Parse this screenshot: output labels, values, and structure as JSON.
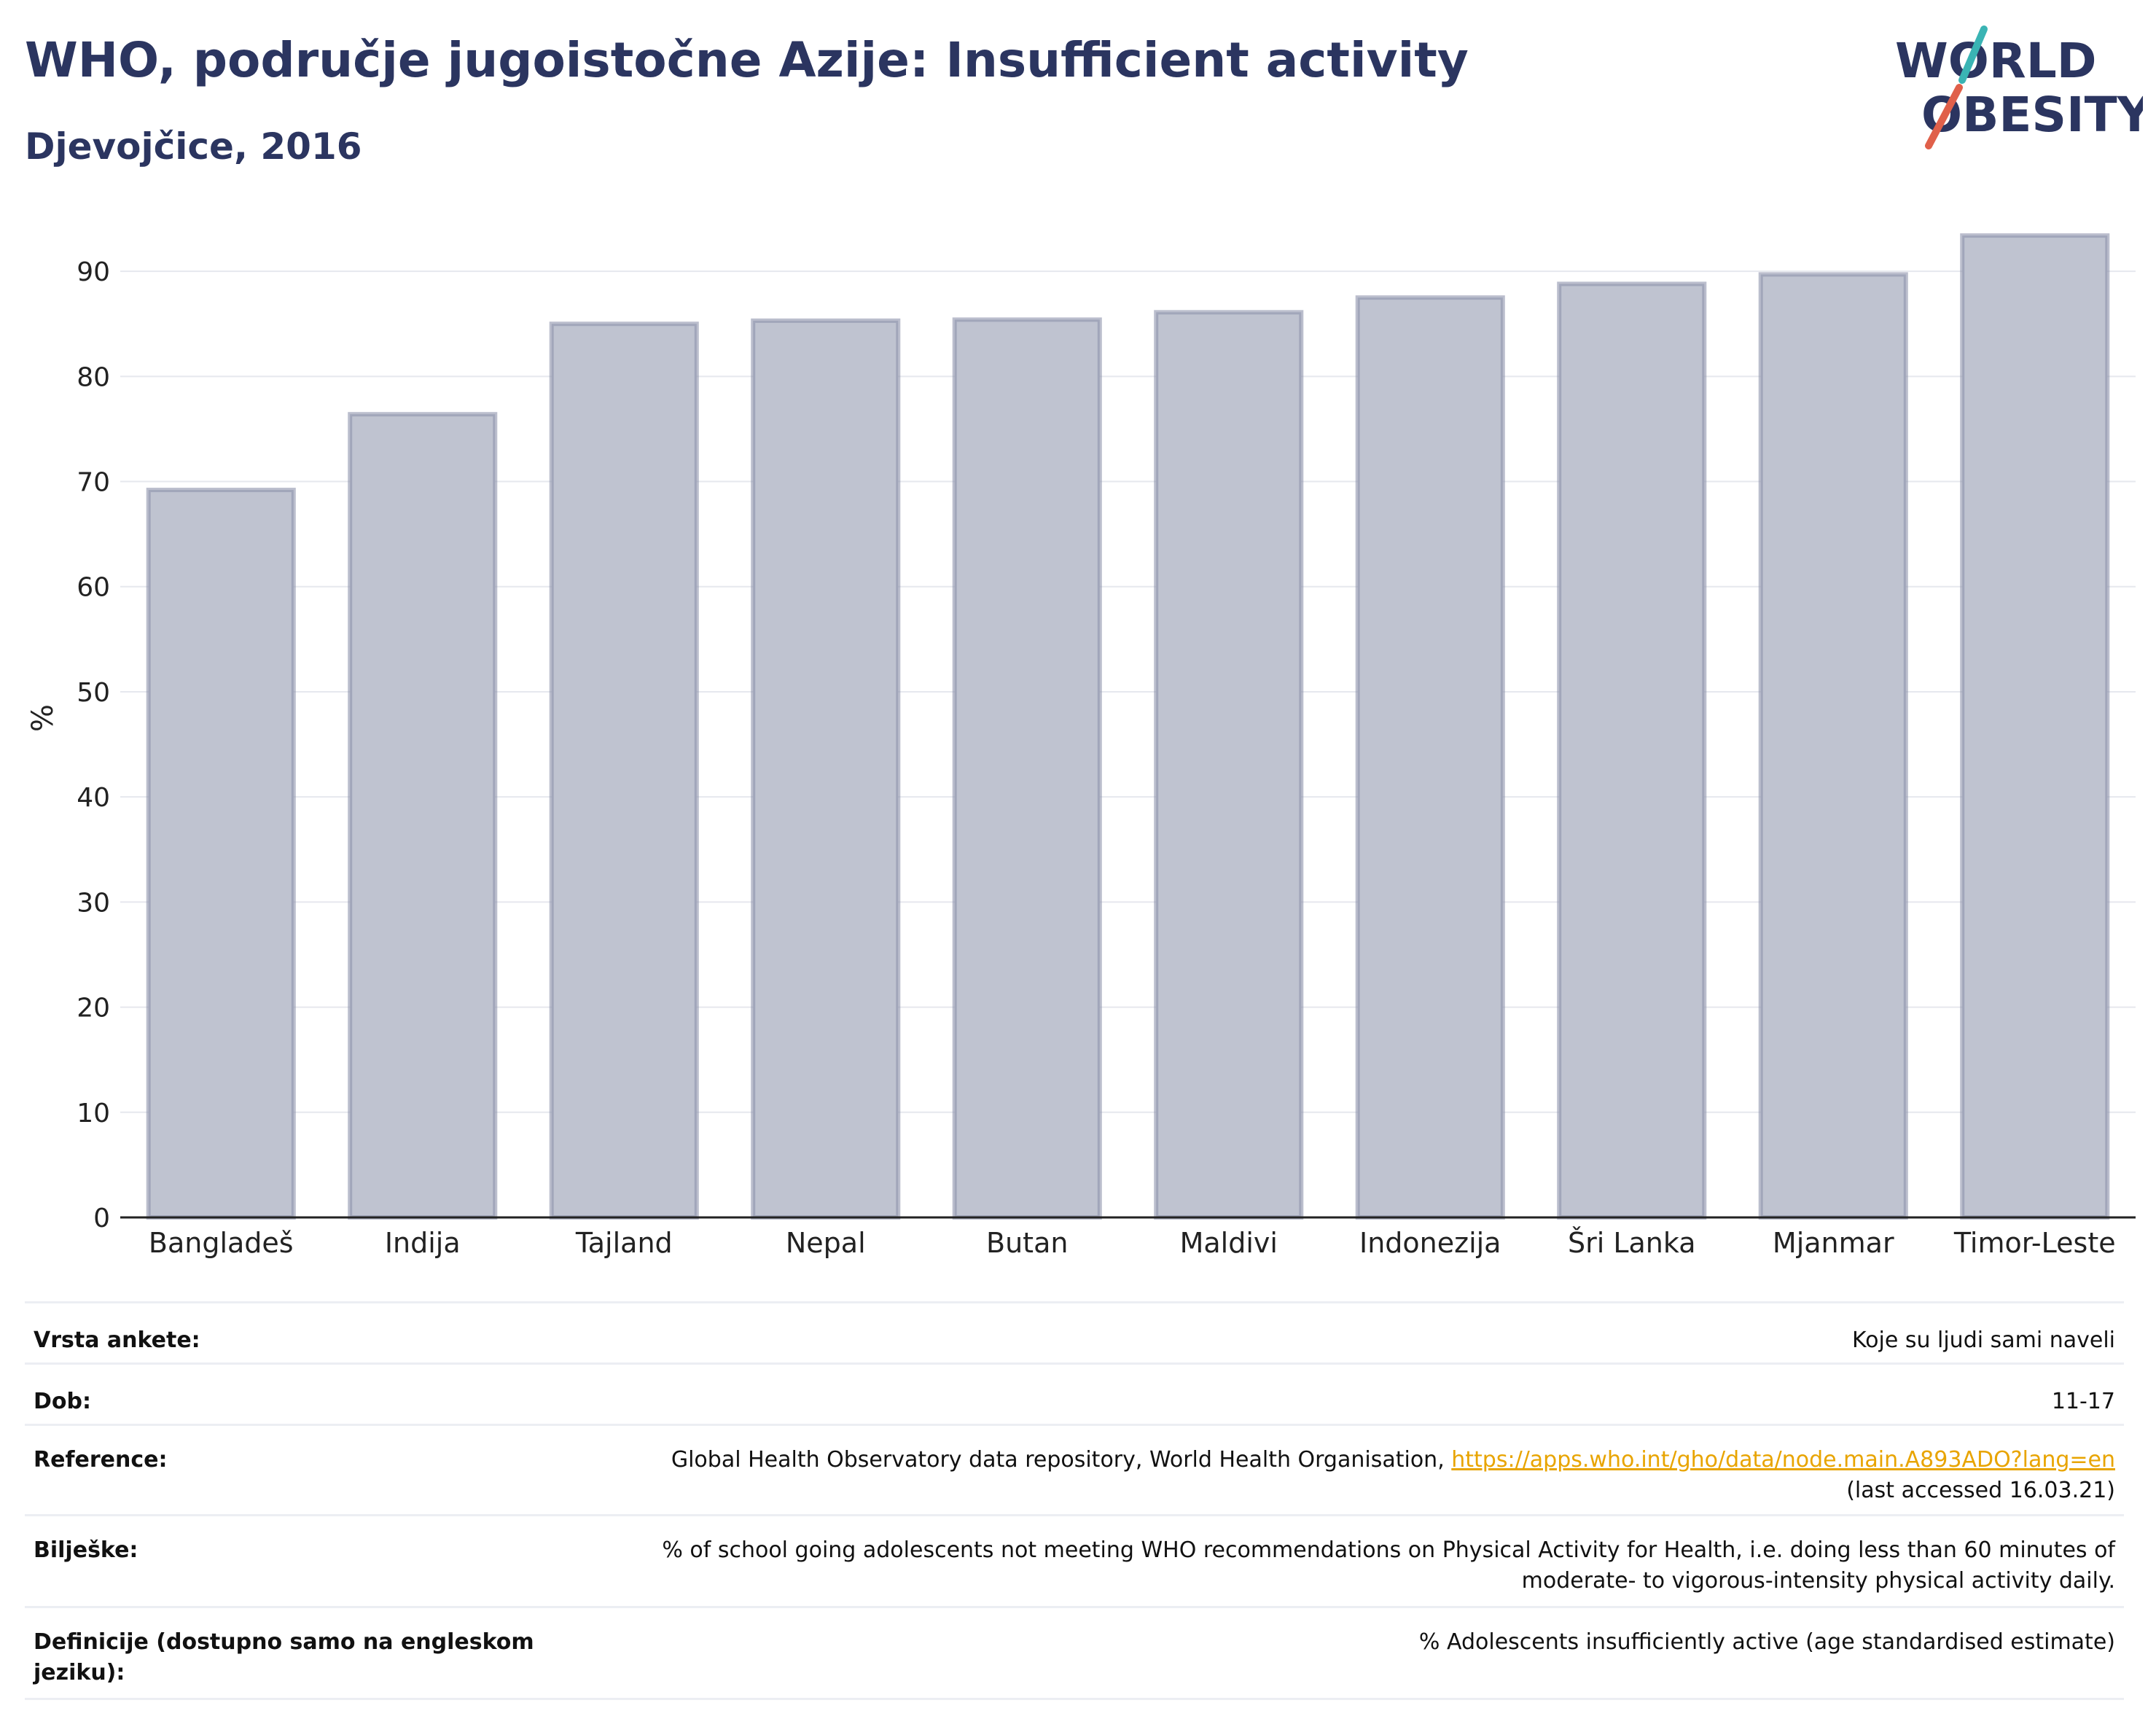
{
  "header": {
    "title": "WHO, područje jugoistočne Azije: Insufficient activity",
    "subtitle": "Djevojčice, 2016"
  },
  "logo": {
    "line1": "WORLD",
    "line2": "OBESITY",
    "accent_teal": "#3ab4b4",
    "accent_red": "#e0604a",
    "text_color": "#2b3560"
  },
  "chart_data": {
    "type": "bar",
    "categories": [
      "Bangladeš",
      "Indija",
      "Tajland",
      "Nepal",
      "Butan",
      "Maldivi",
      "Indonezija",
      "Šri Lanka",
      "Mjanmar",
      "Timor-Leste"
    ],
    "values": [
      69.2,
      76.4,
      85.0,
      85.3,
      85.4,
      86.1,
      87.5,
      88.8,
      89.7,
      93.4
    ],
    "xlabel": "",
    "ylabel": "%",
    "ylim": [
      0,
      95
    ],
    "yticks": [
      0,
      10,
      20,
      30,
      40,
      50,
      60,
      70,
      80,
      90
    ],
    "grid": true,
    "bar_fill": "#bfc3d0",
    "bar_stroke": "#8d93ab"
  },
  "info": {
    "survey_type_label": "Vrsta ankete:",
    "survey_type_value": "Koje su ljudi sami naveli",
    "age_label": "Dob:",
    "age_value": "11-17",
    "reference_label": "Reference:",
    "reference_text": "Global Health Observatory data repository, World Health Organisation, ",
    "reference_link": "https://apps.who.int/gho/data/node.main.A893ADO?lang=en",
    "reference_accessed": "(last accessed 16.03.21)",
    "notes_label": "Bilješke:",
    "notes_line1": "% of school going adolescents not meeting WHO recommendations on Physical Activity for Health, i.e. doing less than 60 minutes of",
    "notes_line2": "moderate- to vigorous-intensity physical activity daily.",
    "definitions_label_line1": "Definicije (dostupno samo na engleskom",
    "definitions_label_line2": "jeziku):",
    "definitions_value": "% Adolescents insufficiently active (age standardised estimate)"
  }
}
